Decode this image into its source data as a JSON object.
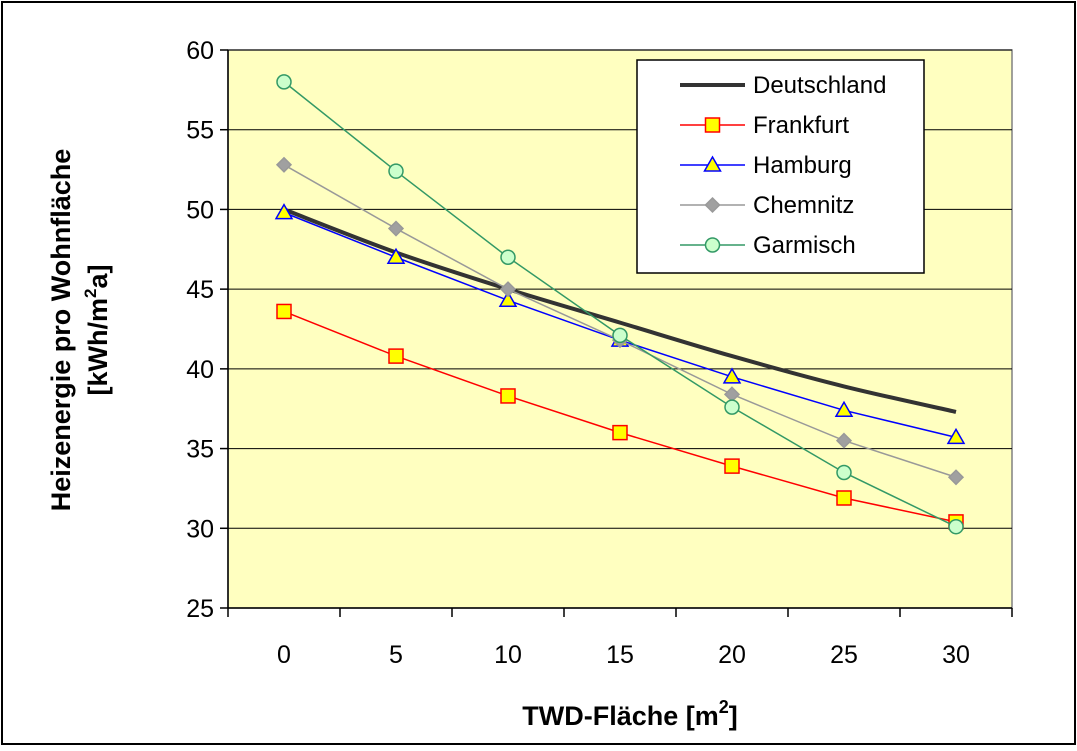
{
  "chart_data": {
    "type": "line",
    "xlabel": "TWD-Fläche [m²]",
    "ylabel_line1": "Heizenergie pro Wohnfläche",
    "ylabel_line2": "[kWh/m²a]",
    "x": [
      0,
      5,
      10,
      15,
      20,
      25,
      30
    ],
    "ylim": [
      25,
      60
    ],
    "yticks": [
      25,
      30,
      35,
      40,
      45,
      50,
      55,
      60
    ],
    "grid": "horizontal",
    "legend_position": "top-right",
    "colors": {
      "plot_background": "#FFFFC0",
      "frame": "#000000"
    },
    "series": [
      {
        "name": "Deutschland",
        "color": "#333333",
        "marker": "none",
        "width": 4,
        "values": [
          50.0,
          47.3,
          45.0,
          42.9,
          40.8,
          38.9,
          37.3
        ]
      },
      {
        "name": "Frankfurt",
        "color": "#FF0000",
        "marker": "square",
        "marker_fill": "#FFFF00",
        "width": 1.5,
        "values": [
          43.6,
          40.8,
          38.3,
          36.0,
          33.9,
          31.9,
          30.4
        ]
      },
      {
        "name": "Hamburg",
        "color": "#0000FF",
        "marker": "triangle",
        "marker_fill": "#FFFF00",
        "width": 1.5,
        "values": [
          49.8,
          47.0,
          44.3,
          41.8,
          39.5,
          37.4,
          35.7
        ]
      },
      {
        "name": "Chemnitz",
        "color": "#999999",
        "marker": "diamond",
        "marker_fill": "#A0A0A0",
        "width": 1.5,
        "values": [
          52.8,
          48.8,
          45.0,
          41.8,
          38.4,
          35.5,
          33.2
        ]
      },
      {
        "name": "Garmisch",
        "color": "#339966",
        "marker": "circle",
        "marker_fill": "#CCFFCC",
        "width": 1.5,
        "values": [
          58.0,
          52.4,
          47.0,
          42.1,
          37.6,
          33.5,
          30.1
        ]
      }
    ]
  }
}
